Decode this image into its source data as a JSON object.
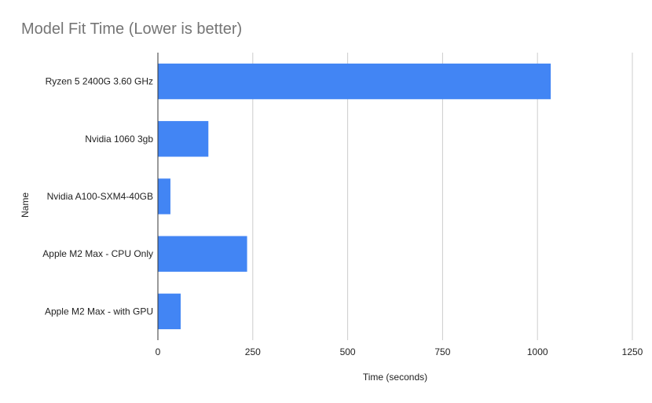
{
  "chart_data": {
    "type": "bar",
    "orientation": "horizontal",
    "title": "Model Fit Time (Lower is better)",
    "xlabel": "Time (seconds)",
    "ylabel": "Name",
    "categories": [
      "Ryzen 5 2400G 3.60 GHz",
      "Nvidia 1060 3gb",
      "Nvidia A100-SXM4-40GB",
      "Apple M2 Max - CPU Only",
      "Apple M2 Max - with GPU"
    ],
    "values": [
      1035,
      133,
      33,
      235,
      60
    ],
    "xlim": [
      0,
      1250
    ],
    "xticks": [
      0,
      250,
      500,
      750,
      1000,
      1250
    ],
    "grid": true,
    "bar_color": "#4285f4",
    "grid_color": "#cccccc",
    "axis_color": "#333333"
  }
}
